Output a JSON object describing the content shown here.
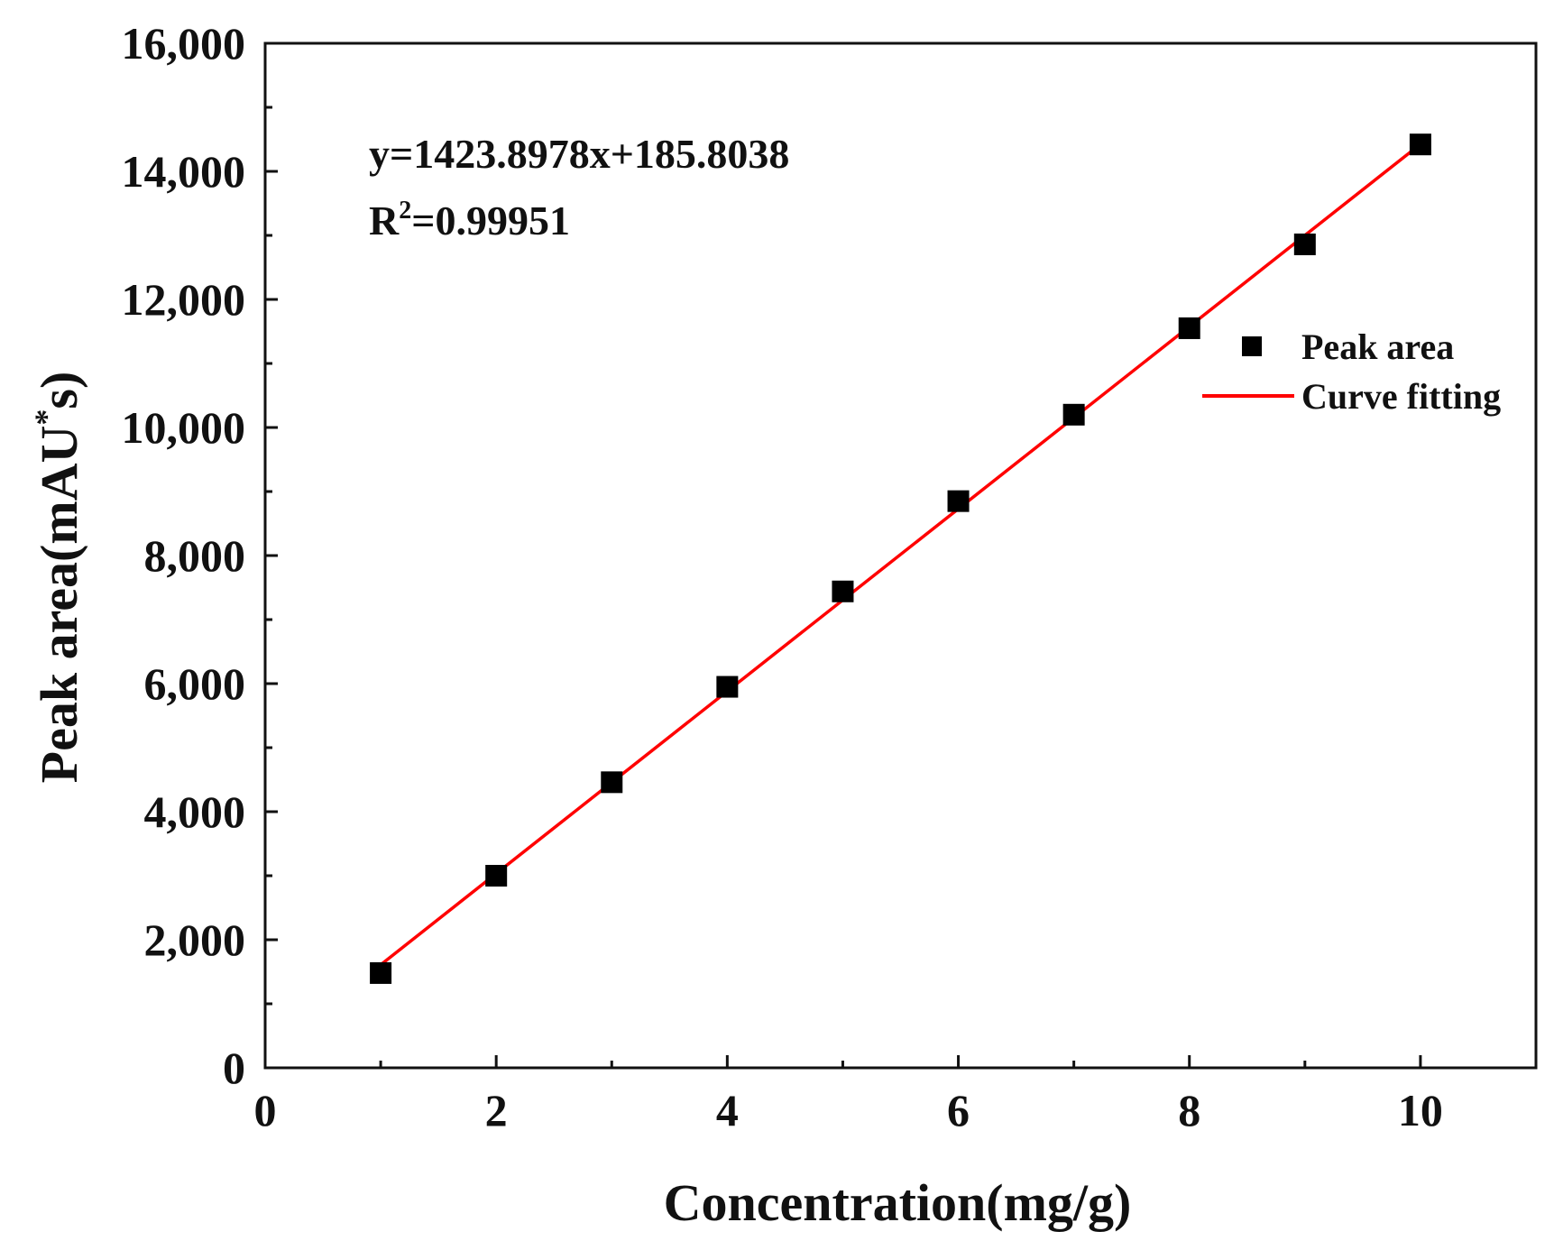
{
  "chart_data": {
    "type": "scatter",
    "xlabel": "Concentration(mg/g)",
    "ylabel": {
      "main": "Peak area(mAU",
      "superscript": "*",
      "tail": "s)"
    },
    "xlim": [
      0,
      11
    ],
    "ylim": [
      0,
      16000
    ],
    "x_ticks": [
      0,
      2,
      4,
      6,
      8,
      10
    ],
    "x_tick_labels": [
      "0",
      "2",
      "4",
      "6",
      "8",
      "10"
    ],
    "y_ticks": [
      0,
      2000,
      4000,
      6000,
      8000,
      10000,
      12000,
      14000,
      16000
    ],
    "y_tick_labels": [
      "0",
      "2,000",
      "4,000",
      "6,000",
      "8,000",
      "10,000",
      "12,000",
      "14,000",
      "16,000"
    ],
    "grid": false,
    "legend_position": "right",
    "series": [
      {
        "name": "Peak area",
        "kind": "scatter",
        "marker": "square",
        "color": "#000000",
        "x": [
          1,
          2,
          3,
          4,
          5,
          6,
          7,
          8,
          9,
          10
        ],
        "y": [
          1480,
          3000,
          4460,
          5950,
          7440,
          8850,
          10200,
          11550,
          12860,
          14420
        ]
      },
      {
        "name": "Curve fitting",
        "kind": "line",
        "color": "#ff0000",
        "slope": 1423.8978,
        "intercept": 185.8038,
        "x_range": [
          1,
          10
        ]
      }
    ],
    "annotations": {
      "equation": "y=1423.8978x+185.8038",
      "r2": {
        "main": "R",
        "superscript": "2",
        "tail": "=0.99951"
      }
    }
  }
}
